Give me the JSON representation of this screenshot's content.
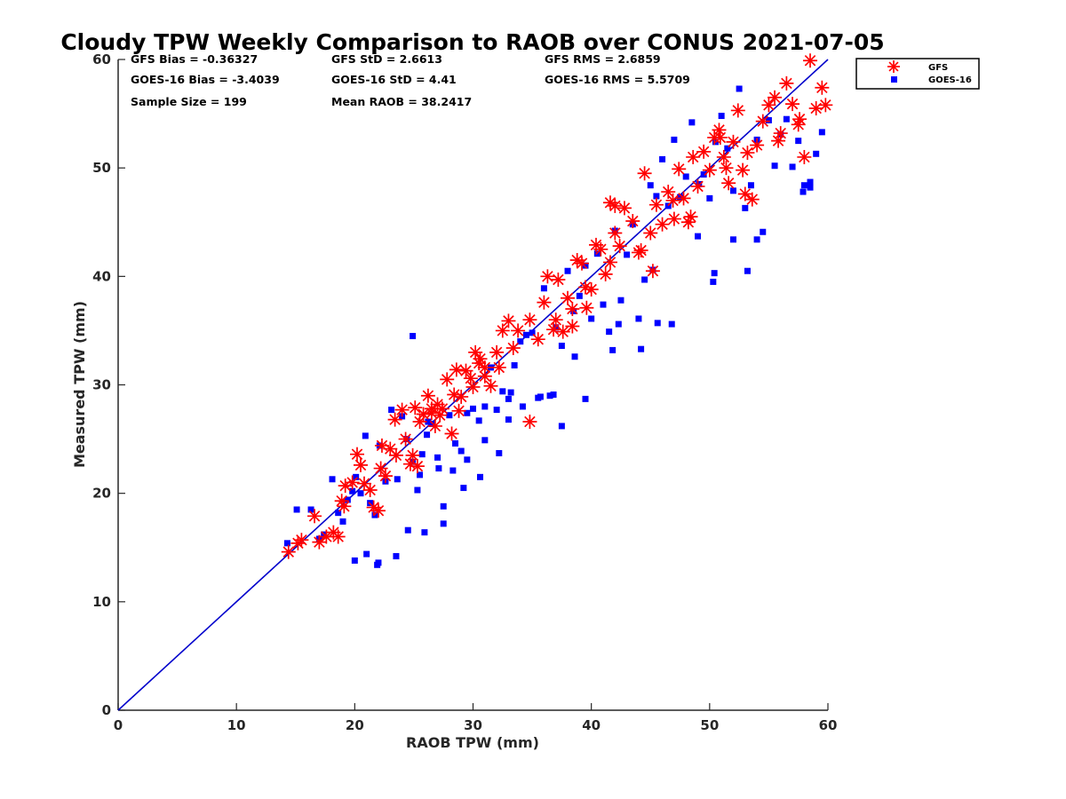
{
  "chart_data": {
    "type": "scatter",
    "title": "Cloudy TPW Weekly Comparison to RAOB over CONUS 2021-07-05",
    "xlabel": "RAOB TPW (mm)",
    "ylabel": "Measured TPW (mm)",
    "xlim": [
      0,
      60
    ],
    "ylim": [
      0,
      60
    ],
    "xticks": [
      "0",
      "10",
      "20",
      "30",
      "40",
      "50",
      "60"
    ],
    "yticks": [
      "0",
      "10",
      "20",
      "30",
      "40",
      "50",
      "60"
    ],
    "grid": false,
    "legend_position": "top-right outside",
    "stats": [
      "GFS Bias = -0.36327",
      "GFS StD = 2.6613",
      "GFS RMS = 2.6859",
      "GOES-16 Bias = -3.4039",
      "GOES-16 StD = 4.41",
      "GOES-16 RMS = 5.5709",
      "Sample Size = 199",
      "Mean RAOB = 38.2417"
    ],
    "reference_line": {
      "x": [
        0,
        60
      ],
      "y": [
        0,
        60
      ],
      "color": "#0000cc"
    },
    "series": [
      {
        "name": "GFS",
        "marker": "asterisk",
        "color": "#ff0000",
        "x": [
          14.4,
          15.2,
          15.5,
          16.6,
          17.0,
          17.6,
          18.2,
          18.9,
          18.6,
          19.2,
          19.8,
          20.2,
          20.5,
          20.8,
          21.3,
          21.6,
          22.0,
          22.3,
          22.6,
          23.0,
          23.5,
          24.0,
          24.3,
          24.7,
          25.1,
          25.5,
          25.8,
          26.2,
          26.5,
          27.0,
          27.4,
          27.8,
          28.2,
          28.6,
          29.0,
          29.4,
          29.8,
          30.2,
          30.6,
          31.0,
          31.5,
          32.0,
          32.5,
          33.0,
          33.4,
          34.8,
          35.5,
          36.0,
          36.3,
          36.8,
          37.2,
          37.6,
          38.0,
          38.4,
          38.8,
          39.2,
          39.6,
          40.0,
          40.4,
          40.8,
          41.2,
          41.6,
          42.0,
          42.4,
          42.8,
          43.5,
          44.0,
          44.5,
          45.0,
          45.5,
          46.0,
          46.5,
          47.0,
          47.4,
          47.8,
          48.2,
          48.6,
          49.0,
          49.5,
          50.0,
          50.4,
          50.8,
          51.2,
          51.6,
          52.0,
          52.4,
          52.8,
          53.2,
          53.6,
          54.0,
          54.5,
          55.0,
          55.5,
          56.0,
          56.5,
          57.0,
          57.5,
          58.0,
          58.5,
          59.0,
          59.5,
          59.8,
          30.0,
          27.2,
          24.9,
          19.1,
          22.2,
          25.3,
          26.8,
          28.8,
          31.0,
          32.2,
          37.0,
          39.5,
          41.6,
          45.2,
          48.4,
          50.9,
          53.0,
          34.8,
          33.8,
          23.4,
          26.5,
          28.4,
          30.5,
          38.4,
          42.0,
          44.2,
          46.9,
          51.4,
          55.8,
          57.6
        ],
        "y": [
          14.6,
          15.4,
          15.7,
          17.9,
          15.5,
          16.0,
          16.4,
          19.3,
          16.0,
          20.7,
          21.0,
          23.6,
          22.6,
          20.9,
          20.3,
          18.7,
          18.4,
          24.4,
          21.6,
          24.1,
          23.5,
          27.7,
          25.0,
          22.7,
          27.9,
          26.6,
          27.3,
          29.0,
          27.8,
          28.2,
          27.8,
          30.5,
          25.5,
          31.4,
          28.9,
          31.3,
          30.6,
          33.0,
          32.4,
          31.6,
          29.9,
          33.0,
          35.0,
          35.9,
          33.4,
          26.6,
          34.2,
          37.6,
          40.0,
          35.1,
          39.7,
          34.9,
          38.0,
          35.4,
          41.5,
          41.2,
          37.1,
          38.8,
          42.9,
          42.5,
          40.2,
          46.8,
          46.5,
          42.8,
          46.3,
          45.1,
          42.2,
          49.5,
          44.0,
          46.6,
          44.8,
          47.8,
          45.3,
          49.9,
          47.2,
          45.0,
          51.0,
          48.3,
          51.5,
          49.8,
          52.8,
          53.5,
          51.0,
          48.6,
          52.4,
          55.3,
          49.8,
          51.4,
          47.1,
          52.1,
          54.3,
          55.8,
          56.5,
          53.2,
          57.8,
          55.9,
          54.0,
          51.0,
          59.9,
          55.5,
          57.4,
          55.8,
          29.8,
          27.2,
          23.5,
          18.8,
          22.3,
          22.5,
          26.2,
          27.6,
          30.8,
          31.6,
          36.0,
          39.0,
          41.3,
          40.5,
          45.5,
          52.8,
          47.6,
          36.0,
          35.0,
          26.8,
          27.4,
          29.1,
          32.0,
          37.0,
          44.0,
          42.4,
          47.0,
          50.0,
          52.5,
          54.5
        ]
      },
      {
        "name": "GOES-16",
        "marker": "square",
        "color": "#0000ff",
        "x": [
          14.3,
          15.1,
          16.3,
          17.0,
          17.4,
          18.1,
          18.6,
          19.0,
          19.4,
          19.8,
          20.1,
          20.5,
          20.9,
          21.3,
          21.7,
          22.1,
          22.6,
          23.1,
          23.6,
          24.0,
          24.4,
          24.9,
          25.3,
          25.7,
          26.1,
          26.5,
          27.0,
          27.5,
          28.0,
          28.5,
          29.0,
          29.5,
          30.0,
          30.5,
          31.0,
          31.5,
          32.0,
          32.5,
          33.0,
          33.5,
          34.0,
          34.5,
          35.0,
          35.5,
          36.0,
          36.5,
          37.0,
          37.5,
          38.0,
          38.5,
          39.0,
          39.5,
          40.0,
          40.5,
          41.0,
          41.5,
          42.0,
          42.5,
          43.0,
          43.5,
          44.0,
          44.5,
          45.0,
          45.5,
          46.0,
          46.5,
          47.0,
          47.5,
          48.0,
          48.5,
          49.0,
          49.5,
          50.0,
          50.5,
          51.0,
          51.5,
          52.0,
          52.5,
          53.0,
          53.5,
          54.0,
          54.5,
          55.0,
          55.5,
          56.0,
          56.5,
          57.0,
          57.5,
          58.0,
          58.5,
          59.0,
          59.5,
          20.0,
          21.0,
          21.9,
          23.5,
          24.5,
          25.9,
          27.5,
          29.2,
          30.6,
          32.2,
          34.2,
          36.8,
          39.5,
          42.3,
          44.2,
          46.8,
          50.3,
          52.0,
          54.0,
          57.9,
          24.9,
          26.2,
          28.3,
          31.0,
          33.0,
          35.7,
          38.6,
          41.8,
          45.2,
          49.1,
          53.2,
          58.5,
          22.0,
          25.5,
          29.5,
          27.1,
          33.2,
          37.5,
          45.6,
          50.4
        ],
        "y": [
          15.4,
          18.5,
          18.5,
          15.8,
          16.2,
          21.3,
          18.2,
          17.4,
          19.4,
          20.2,
          21.5,
          20.0,
          25.3,
          19.1,
          18.0,
          24.4,
          21.1,
          27.7,
          21.3,
          27.1,
          25.0,
          22.9,
          20.3,
          23.6,
          25.4,
          26.4,
          23.3,
          18.8,
          27.2,
          24.6,
          23.9,
          27.4,
          27.8,
          26.7,
          28.0,
          31.6,
          27.7,
          29.4,
          28.7,
          31.8,
          34.0,
          34.6,
          34.8,
          28.8,
          38.9,
          29.0,
          35.3,
          33.6,
          40.5,
          36.8,
          38.2,
          41.0,
          36.1,
          42.1,
          37.4,
          34.9,
          44.2,
          37.8,
          42.0,
          44.8,
          36.1,
          39.7,
          48.4,
          47.4,
          50.8,
          46.5,
          52.6,
          47.3,
          49.2,
          54.2,
          43.7,
          49.4,
          47.2,
          52.4,
          54.8,
          51.8,
          47.9,
          57.3,
          46.3,
          48.4,
          52.6,
          44.1,
          54.4,
          50.2,
          53.1,
          54.5,
          50.1,
          52.5,
          48.4,
          48.7,
          51.3,
          53.3,
          13.8,
          14.4,
          13.4,
          14.2,
          16.6,
          16.4,
          17.2,
          20.5,
          21.5,
          23.7,
          28.0,
          29.1,
          28.7,
          35.6,
          33.3,
          35.6,
          39.5,
          43.4,
          43.4,
          47.8,
          34.5,
          26.6,
          22.1,
          24.9,
          26.8,
          28.9,
          32.6,
          33.2,
          40.6,
          48.5,
          40.5,
          48.2,
          13.6,
          21.7,
          23.1,
          22.3,
          29.3,
          26.2,
          35.7,
          40.3
        ]
      }
    ]
  }
}
